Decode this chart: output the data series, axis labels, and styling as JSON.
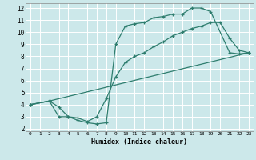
{
  "xlabel": "Humidex (Indice chaleur)",
  "bg_color": "#cce8ea",
  "grid_color": "#ffffff",
  "line_color": "#2e7d6e",
  "xlim": [
    -0.5,
    23.5
  ],
  "ylim": [
    1.8,
    12.4
  ],
  "xticks": [
    0,
    1,
    2,
    3,
    4,
    5,
    6,
    7,
    8,
    9,
    10,
    11,
    12,
    13,
    14,
    15,
    16,
    17,
    18,
    19,
    20,
    21,
    22,
    23
  ],
  "yticks": [
    2,
    3,
    4,
    5,
    6,
    7,
    8,
    9,
    10,
    11,
    12
  ],
  "line1_x": [
    0,
    2,
    3,
    4,
    5,
    6,
    7,
    8,
    9,
    10,
    11,
    12,
    13,
    14,
    15,
    16,
    17,
    18,
    19,
    21,
    22,
    23
  ],
  "line1_y": [
    4,
    4.3,
    3.0,
    3.0,
    2.7,
    2.5,
    2.4,
    2.5,
    9.0,
    10.5,
    10.7,
    10.8,
    11.2,
    11.3,
    11.5,
    11.5,
    12.0,
    12.0,
    11.7,
    8.3,
    8.2,
    8.3
  ],
  "line2_x": [
    0,
    2,
    3,
    4,
    5,
    6,
    7,
    8,
    9,
    10,
    11,
    12,
    13,
    14,
    15,
    16,
    17,
    18,
    19,
    20,
    21,
    22,
    23
  ],
  "line2_y": [
    4,
    4.3,
    3.8,
    3.0,
    2.9,
    2.6,
    3.0,
    4.5,
    6.3,
    7.5,
    8.0,
    8.3,
    8.8,
    9.2,
    9.7,
    10.0,
    10.3,
    10.5,
    10.8,
    10.8,
    9.5,
    8.5,
    8.3
  ],
  "line3_x": [
    0,
    2,
    23
  ],
  "line3_y": [
    4,
    4.3,
    8.3
  ]
}
